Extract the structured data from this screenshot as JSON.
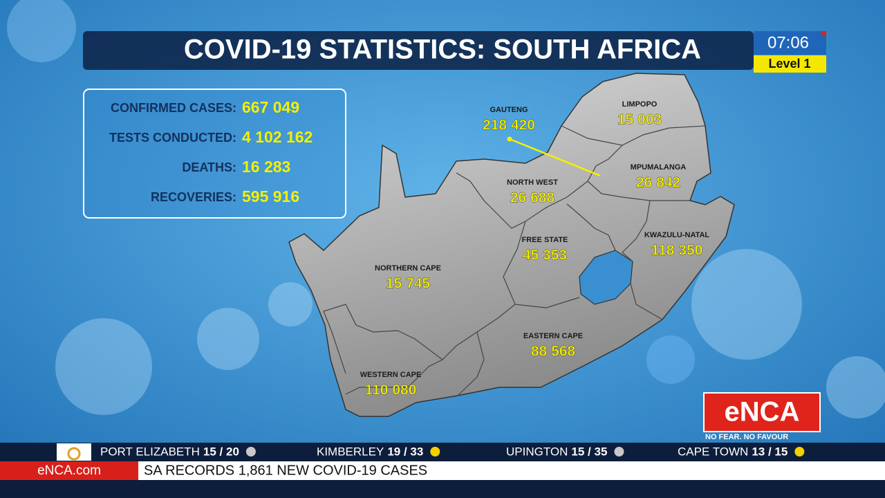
{
  "header": {
    "title": "COVID-19 STATISTICS: SOUTH AFRICA",
    "time": "07:06",
    "level": "Level 1"
  },
  "stats": [
    {
      "label": "CONFIRMED CASES:",
      "value": "667 049"
    },
    {
      "label": "TESTS CONDUCTED:",
      "value": "4 102 162"
    },
    {
      "label": "DEATHS:",
      "value": "16 283"
    },
    {
      "label": "RECOVERIES:",
      "value": "595 916"
    }
  ],
  "regions": [
    {
      "name": "LIMPOPO",
      "value": "15 003"
    },
    {
      "name": "GAUTENG",
      "value": "218 420"
    },
    {
      "name": "MPUMALANGA",
      "value": "26 842"
    },
    {
      "name": "NORTH WEST",
      "value": "26 688"
    },
    {
      "name": "FREE STATE",
      "value": "45 353"
    },
    {
      "name": "KWAZULU-NATAL",
      "value": "118 350"
    },
    {
      "name": "NORTHERN CAPE",
      "value": "15 745"
    },
    {
      "name": "EASTERN CAPE",
      "value": "88 568"
    },
    {
      "name": "WESTERN CAPE",
      "value": "110 080"
    }
  ],
  "logo": {
    "name": "eNCA",
    "tagline": "NO FEAR. NO FAVOUR"
  },
  "weather": [
    {
      "city": "PORT ELIZABETH",
      "temps": "15 / 20"
    },
    {
      "city": "KIMBERLEY",
      "temps": "19 / 33"
    },
    {
      "city": "UPINGTON",
      "temps": "15 / 35"
    },
    {
      "city": "CAPE TOWN",
      "temps": "13 / 15"
    }
  ],
  "ticker": {
    "site": "eNCA.com",
    "headline": "SA RECORDS 1,861 NEW COVID-19 CASES"
  }
}
